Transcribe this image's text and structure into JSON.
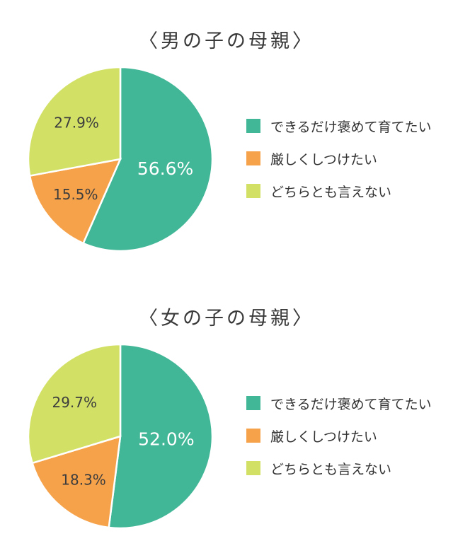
{
  "colors": {
    "praise": "#41b797",
    "strict": "#f6a24b",
    "neither": "#d2e166",
    "label_dark": "#3d3d3d",
    "label_light": "#ffffff"
  },
  "chart_data": [
    {
      "type": "pie",
      "title": "〈男の子の母親〉",
      "legend_position": "right",
      "categories": [
        "できるだけ褒めて育てたい",
        "厳しくしつけたい",
        "どちらとも言えない"
      ],
      "values": [
        56.6,
        15.5,
        27.9
      ],
      "data_labels": [
        "56.6%",
        "15.5%",
        "27.9%"
      ]
    },
    {
      "type": "pie",
      "title": "〈女の子の母親〉",
      "legend_position": "right",
      "categories": [
        "できるだけ褒めて育てたい",
        "厳しくしつけたい",
        "どちらとも言えない"
      ],
      "values": [
        52.0,
        18.3,
        29.7
      ],
      "data_labels": [
        "52.0%",
        "18.3%",
        "29.7%"
      ]
    }
  ]
}
